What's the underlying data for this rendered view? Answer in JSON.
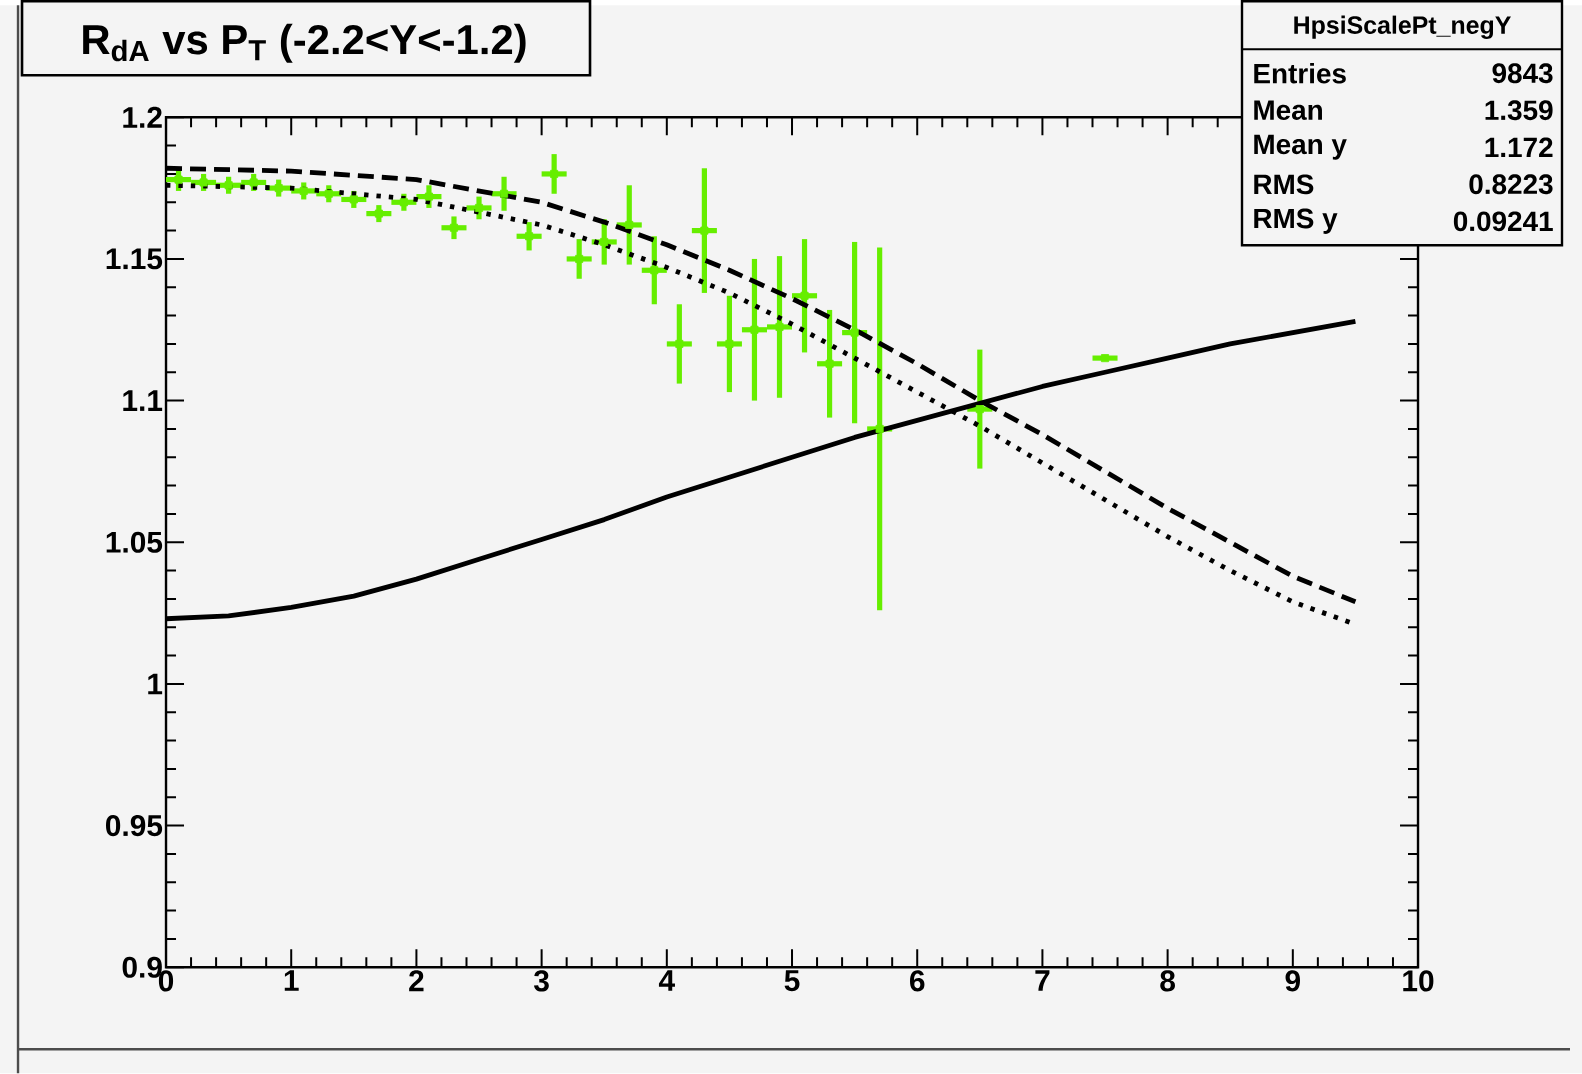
{
  "chart_data": {
    "type": "scatter",
    "title": "R$_{dA}$ vs P$_{T}$ (-2.2<Y<-1.2)",
    "annotations": [
      "HpsiScalePt_negY",
      "Entries",
      "9843",
      "Mean",
      "1.359",
      "Mean y",
      "1.172",
      "RMS",
      "0.8223",
      "RMS y",
      "0.09241"
    ],
    "xlim": [
      0,
      10
    ],
    "ylim": [
      0.9,
      1.2
    ],
    "xticks": [
      0,
      1,
      2,
      3,
      4,
      5,
      6,
      7,
      8,
      9,
      10
    ],
    "yticks": [
      0.9,
      0.95,
      1,
      1.05,
      1.1,
      1.15,
      1.2
    ],
    "series": [
      {
        "marker": "square",
        "color": "#66ee00",
        "x": [
          0.1,
          0.3,
          0.5,
          0.7,
          0.9,
          1.1,
          1.3,
          1.5,
          1.7,
          1.9,
          2.1,
          2.3,
          2.5,
          2.7,
          2.9,
          3.1,
          3.3,
          3.5,
          3.7,
          3.9,
          4.1,
          4.3,
          4.5,
          4.7,
          4.9,
          5.1,
          5.3,
          5.5,
          5.7,
          6.5,
          7.5
        ],
        "values": [
          1.178,
          1.177,
          1.176,
          1.177,
          1.175,
          1.174,
          1.173,
          1.171,
          1.166,
          1.17,
          1.172,
          1.161,
          1.168,
          1.173,
          1.158,
          1.18,
          1.15,
          1.156,
          1.162,
          1.146,
          1.12,
          1.16,
          1.12,
          1.125,
          1.126,
          1.137,
          1.113,
          1.124,
          1.09,
          1.097,
          1.115
        ],
        "errors": [
          0.004,
          0.003,
          0.003,
          0.003,
          0.003,
          0.003,
          0.003,
          0.003,
          0.003,
          0.003,
          0.004,
          0.004,
          0.004,
          0.006,
          0.005,
          0.007,
          0.007,
          0.008,
          0.014,
          0.012,
          0.014,
          0.022,
          0.017,
          0.025,
          0.025,
          0.02,
          0.019,
          0.032,
          0.064,
          0.021,
          null
        ],
        "xerrors": [
          0.1,
          0.1,
          0.1,
          0.1,
          0.1,
          0.1,
          0.1,
          0.1,
          0.1,
          0.1,
          0.1,
          0.1,
          0.1,
          0.1,
          0.1,
          0.1,
          0.1,
          0.1,
          0.1,
          0.1,
          0.1,
          0.1,
          0.1,
          0.1,
          0.1,
          0.1,
          0.1,
          0.1,
          0.1,
          0.1,
          0.1
        ]
      },
      {
        "type": "line",
        "line_style": "dashed",
        "color": "#000000",
        "x": [
          0,
          1,
          2,
          3,
          3.5,
          4,
          4.5,
          5,
          5.5,
          6,
          6.5,
          7,
          7.5,
          8,
          8.5,
          9,
          9.5
        ],
        "values": [
          1.182,
          1.181,
          1.178,
          1.17,
          1.163,
          1.155,
          1.146,
          1.136,
          1.125,
          1.113,
          1.1,
          1.088,
          1.075,
          1.062,
          1.05,
          1.038,
          1.029
        ]
      },
      {
        "type": "line",
        "line_style": "dotted",
        "color": "#000000",
        "x": [
          0,
          1,
          2,
          3,
          3.5,
          4,
          4.5,
          5,
          5.5,
          6,
          6.5,
          7,
          7.5,
          8,
          8.5,
          9,
          9.5
        ],
        "values": [
          1.176,
          1.175,
          1.171,
          1.162,
          1.155,
          1.147,
          1.138,
          1.127,
          1.115,
          1.103,
          1.091,
          1.078,
          1.065,
          1.052,
          1.04,
          1.029,
          1.021
        ]
      },
      {
        "type": "line",
        "line_style": "solid",
        "color": "#000000",
        "x": [
          0,
          0.5,
          1,
          1.5,
          2,
          2.5,
          3,
          3.5,
          4,
          4.5,
          5,
          5.5,
          6,
          6.5,
          7,
          7.5,
          8,
          8.5,
          9,
          9.5
        ],
        "values": [
          1.023,
          1.024,
          1.027,
          1.031,
          1.037,
          1.044,
          1.051,
          1.058,
          1.066,
          1.073,
          1.08,
          1.087,
          1.093,
          1.099,
          1.105,
          1.11,
          1.115,
          1.12,
          1.124,
          1.128
        ]
      }
    ]
  }
}
